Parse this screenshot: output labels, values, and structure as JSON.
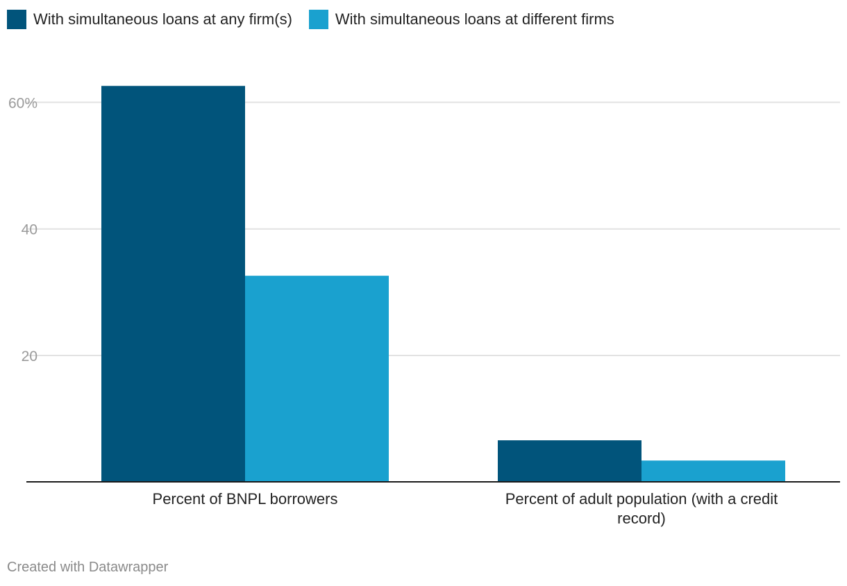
{
  "chart_data": {
    "type": "bar",
    "categories": [
      "Percent of BNPL borrowers",
      "Percent of adult population (with a credit record)"
    ],
    "category_label_lines": [
      [
        "Percent of BNPL borrowers"
      ],
      [
        "Percent of adult population (with a credit",
        "record)"
      ]
    ],
    "series": [
      {
        "name": "With simultaneous loans at any firm(s)",
        "color": "#01547b",
        "values": [
          62.6,
          6.6
        ]
      },
      {
        "name": "With simultaneous loans at different firms",
        "color": "#1aa1cf",
        "values": [
          32.6,
          3.4
        ]
      }
    ],
    "yticks": [
      {
        "value": 20,
        "label": "20"
      },
      {
        "value": 40,
        "label": "40"
      },
      {
        "value": 60,
        "label": "60%"
      }
    ],
    "ylim": [
      0,
      65
    ],
    "grid": true,
    "legend_position": "top-left",
    "title": "",
    "xlabel": "",
    "ylabel": ""
  },
  "footer": "Created with Datawrapper"
}
